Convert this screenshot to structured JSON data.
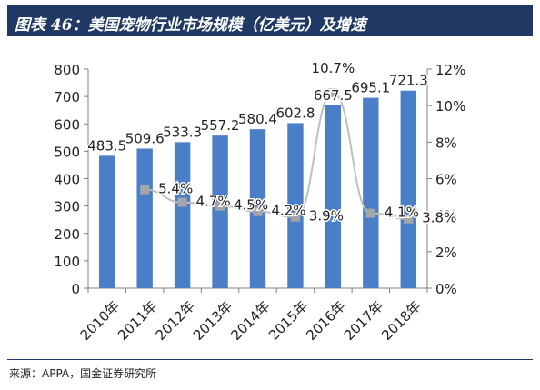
{
  "header": {
    "title": "图表 46：美国宠物行业市场规模（亿美元）及增速"
  },
  "source": "来源：APPA，国金证券研究所",
  "colors": {
    "bar": "#4a7fc8",
    "line": "#bfbfbf",
    "marker": "#a6a6a6",
    "title_bg": "#1f3864"
  },
  "chart_data": {
    "type": "bar",
    "categories": [
      "2010年",
      "2011年",
      "2012年",
      "2013年",
      "2014年",
      "2015年",
      "2016年",
      "2017年",
      "2018年"
    ],
    "series": [
      {
        "type": "bar",
        "axis": "left",
        "values": [
          483.5,
          509.6,
          533.3,
          557.2,
          580.4,
          602.8,
          667.5,
          695.1,
          721.3
        ],
        "labels": [
          "483.5",
          "509.6",
          "533.3",
          "557.2",
          "580.4",
          "602.8",
          "667.5",
          "695.1",
          "721.3"
        ]
      },
      {
        "type": "line",
        "axis": "right",
        "values": [
          null,
          5.4,
          4.7,
          4.5,
          4.2,
          3.9,
          10.7,
          4.1,
          3.8
        ],
        "labels": [
          "",
          "5.4%",
          "4.7%",
          "4.5%",
          "4.2%",
          "3.9%",
          "10.7%",
          "4.1%",
          "3.8%"
        ]
      }
    ],
    "y_left": {
      "range": [
        0,
        800
      ],
      "ticks": [
        "0",
        "100",
        "200",
        "300",
        "400",
        "500",
        "600",
        "700",
        "800"
      ]
    },
    "y_right": {
      "range": [
        0,
        12
      ],
      "ticks": [
        "0%",
        "2%",
        "4%",
        "6%",
        "8%",
        "10%",
        "12%"
      ]
    },
    "grid": false,
    "legend": "none"
  }
}
